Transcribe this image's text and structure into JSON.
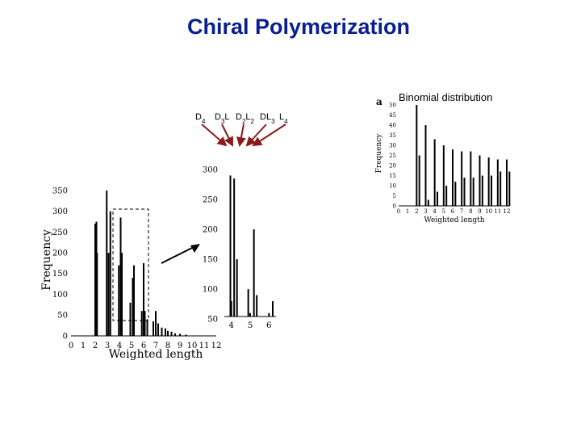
{
  "page": {
    "title": "Chiral Polymerization",
    "binomial_title": "Binomial distribution",
    "panel_label": "a",
    "species_labels": [
      "D4",
      "D3L",
      "D2L2",
      "DL3",
      "L4"
    ],
    "colors": {
      "title": "#0a1f8f",
      "arrows": "#8b1a1a",
      "bars": "#000000"
    }
  },
  "chart_data": [
    {
      "type": "bar",
      "name": "main",
      "xlabel": "Weighted length",
      "ylabel": "Frequency",
      "xlim": [
        0,
        12
      ],
      "ylim": [
        0,
        350
      ],
      "xticks": [
        0,
        1,
        2,
        3,
        4,
        5,
        6,
        7,
        8,
        9,
        10,
        11,
        12
      ],
      "yticks": [
        0,
        50,
        100,
        150,
        200,
        250,
        300,
        350
      ],
      "x": [
        2.0,
        2.1,
        2.15,
        2.95,
        3.1,
        3.25,
        3.95,
        4.1,
        4.2,
        4.9,
        5.1,
        5.2,
        5.85,
        6.0,
        6.1,
        6.3,
        6.8,
        7.0,
        7.2,
        7.5,
        7.8,
        8.0,
        8.3,
        8.6,
        9.0,
        9.5
      ],
      "values": [
        270,
        275,
        200,
        350,
        200,
        300,
        170,
        285,
        200,
        80,
        140,
        170,
        60,
        175,
        60,
        40,
        35,
        60,
        30,
        20,
        18,
        12,
        10,
        6,
        5,
        3
      ],
      "zoom_box": {
        "x_range": [
          3.5,
          6.5
        ],
        "y_range": [
          0,
          300
        ]
      }
    },
    {
      "type": "bar",
      "name": "inset",
      "xlim": [
        3.5,
        6.5
      ],
      "ylim": [
        30,
        300
      ],
      "xticks": [
        4,
        5,
        6
      ],
      "yticks": [
        50,
        100,
        150,
        200,
        250,
        300
      ],
      "x": [
        3.95,
        4.0,
        4.15,
        4.3,
        4.9,
        5.0,
        5.2,
        5.35,
        5.9,
        6.0,
        6.1,
        6.2
      ],
      "values": [
        290,
        80,
        285,
        150,
        100,
        60,
        200,
        90,
        40,
        60,
        50,
        80
      ]
    },
    {
      "type": "bar",
      "name": "binomial",
      "xlabel": "Weighted length",
      "ylabel": "Frequency",
      "xlim": [
        0,
        12
      ],
      "ylim": [
        0,
        50
      ],
      "xticks": [
        0,
        1,
        2,
        3,
        4,
        5,
        6,
        7,
        8,
        9,
        10,
        11,
        12
      ],
      "yticks": [
        0,
        5,
        10,
        15,
        20,
        25,
        30,
        35,
        40,
        45,
        50
      ],
      "x": [
        2,
        2.3,
        3,
        3.3,
        4,
        4.3,
        5,
        5.3,
        6,
        6.3,
        7,
        7.3,
        8,
        8.3,
        9,
        9.3,
        10,
        10.3,
        11,
        11.3,
        12,
        12.3
      ],
      "values": [
        50,
        25,
        40,
        3,
        33,
        7,
        30,
        10,
        28,
        12,
        27,
        14,
        27,
        14,
        25,
        15,
        24,
        15,
        23,
        17,
        23,
        17
      ]
    }
  ]
}
